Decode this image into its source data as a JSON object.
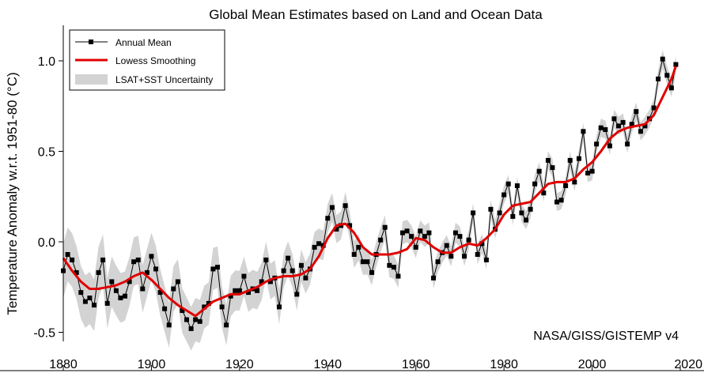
{
  "chart_data": {
    "type": "line",
    "title": "Global Mean Estimates based on Land and Ocean Data",
    "xlabel": "",
    "ylabel": "Temperature Anomaly w.r.t. 1951-80 (°C)",
    "xlim": [
      1880,
      2020
    ],
    "ylim": [
      -0.6,
      1.22
    ],
    "xticks": [
      1880,
      1900,
      1920,
      1940,
      1960,
      1980,
      2000,
      2020
    ],
    "yticks": [
      -0.5,
      0.0,
      0.5,
      1.0
    ],
    "ytick_labels": [
      "-0.5",
      "0.0",
      "0.5",
      "1.0"
    ],
    "grid": false,
    "legend_position": "top-left",
    "annotation": "NASA/GISS/GISTEMP v4",
    "colors": {
      "annual": "#000000",
      "smooth": "#e00000",
      "band": "#d3d3d3"
    },
    "series": [
      {
        "name": "Annual Mean",
        "style": "black line with square markers",
        "x": [
          1880,
          1881,
          1882,
          1883,
          1884,
          1885,
          1886,
          1887,
          1888,
          1889,
          1890,
          1891,
          1892,
          1893,
          1894,
          1895,
          1896,
          1897,
          1898,
          1899,
          1900,
          1901,
          1902,
          1903,
          1904,
          1905,
          1906,
          1907,
          1908,
          1909,
          1910,
          1911,
          1912,
          1913,
          1914,
          1915,
          1916,
          1917,
          1918,
          1919,
          1920,
          1921,
          1922,
          1923,
          1924,
          1925,
          1926,
          1927,
          1928,
          1929,
          1930,
          1931,
          1932,
          1933,
          1934,
          1935,
          1936,
          1937,
          1938,
          1939,
          1940,
          1941,
          1942,
          1943,
          1944,
          1945,
          1946,
          1947,
          1948,
          1949,
          1950,
          1951,
          1952,
          1953,
          1954,
          1955,
          1956,
          1957,
          1958,
          1959,
          1960,
          1961,
          1962,
          1963,
          1964,
          1965,
          1966,
          1967,
          1968,
          1969,
          1970,
          1971,
          1972,
          1973,
          1974,
          1975,
          1976,
          1977,
          1978,
          1979,
          1980,
          1981,
          1982,
          1983,
          1984,
          1985,
          1986,
          1987,
          1988,
          1989,
          1990,
          1991,
          1992,
          1993,
          1994,
          1995,
          1996,
          1997,
          1998,
          1999,
          2000,
          2001,
          2002,
          2003,
          2004,
          2005,
          2006,
          2007,
          2008,
          2009,
          2010,
          2011,
          2012,
          2013,
          2014,
          2015,
          2016,
          2017,
          2018,
          2019
        ],
        "y": [
          -0.16,
          -0.07,
          -0.1,
          -0.17,
          -0.28,
          -0.33,
          -0.31,
          -0.35,
          -0.17,
          -0.1,
          -0.34,
          -0.22,
          -0.27,
          -0.31,
          -0.3,
          -0.22,
          -0.11,
          -0.1,
          -0.26,
          -0.17,
          -0.08,
          -0.15,
          -0.28,
          -0.37,
          -0.46,
          -0.26,
          -0.22,
          -0.38,
          -0.43,
          -0.48,
          -0.43,
          -0.44,
          -0.36,
          -0.34,
          -0.15,
          -0.14,
          -0.36,
          -0.46,
          -0.3,
          -0.27,
          -0.27,
          -0.19,
          -0.28,
          -0.26,
          -0.27,
          -0.22,
          -0.1,
          -0.22,
          -0.2,
          -0.36,
          -0.16,
          -0.09,
          -0.16,
          -0.29,
          -0.13,
          -0.2,
          -0.15,
          -0.03,
          -0.01,
          -0.02,
          0.13,
          0.19,
          0.07,
          0.09,
          0.2,
          0.09,
          -0.07,
          -0.03,
          -0.11,
          -0.11,
          -0.17,
          -0.07,
          0.01,
          0.08,
          -0.13,
          -0.14,
          -0.19,
          0.05,
          0.06,
          0.03,
          -0.03,
          0.06,
          0.03,
          0.05,
          -0.2,
          -0.11,
          -0.06,
          -0.02,
          -0.08,
          0.05,
          0.03,
          -0.08,
          0.01,
          0.16,
          -0.07,
          -0.01,
          -0.1,
          0.18,
          0.07,
          0.16,
          0.26,
          0.32,
          0.14,
          0.31,
          0.16,
          0.12,
          0.18,
          0.32,
          0.39,
          0.27,
          0.45,
          0.41,
          0.22,
          0.23,
          0.31,
          0.45,
          0.33,
          0.46,
          0.61,
          0.38,
          0.39,
          0.54,
          0.63,
          0.62,
          0.53,
          0.68,
          0.64,
          0.66,
          0.54,
          0.65,
          0.72,
          0.61,
          0.64,
          0.68,
          0.74,
          0.9,
          1.01,
          0.92,
          0.85,
          0.98
        ]
      },
      {
        "name": "Lowess Smoothing",
        "style": "thick red line",
        "x": [
          1880,
          1882,
          1884,
          1886,
          1888,
          1890,
          1892,
          1894,
          1896,
          1898,
          1900,
          1902,
          1904,
          1906,
          1908,
          1910,
          1912,
          1914,
          1916,
          1918,
          1920,
          1922,
          1924,
          1926,
          1928,
          1930,
          1932,
          1934,
          1936,
          1938,
          1940,
          1942,
          1944,
          1946,
          1948,
          1950,
          1952,
          1954,
          1956,
          1958,
          1960,
          1962,
          1964,
          1966,
          1968,
          1970,
          1972,
          1974,
          1976,
          1978,
          1980,
          1982,
          1984,
          1986,
          1988,
          1990,
          1992,
          1994,
          1996,
          1998,
          2000,
          2002,
          2004,
          2006,
          2008,
          2010,
          2012,
          2014,
          2016,
          2018,
          2019
        ],
        "y": [
          -0.09,
          -0.16,
          -0.22,
          -0.26,
          -0.26,
          -0.25,
          -0.24,
          -0.22,
          -0.19,
          -0.17,
          -0.21,
          -0.26,
          -0.31,
          -0.35,
          -0.38,
          -0.41,
          -0.37,
          -0.33,
          -0.31,
          -0.29,
          -0.29,
          -0.27,
          -0.25,
          -0.22,
          -0.2,
          -0.19,
          -0.19,
          -0.18,
          -0.15,
          -0.08,
          0.02,
          0.09,
          0.1,
          0.05,
          -0.03,
          -0.07,
          -0.07,
          -0.07,
          -0.06,
          -0.04,
          0.02,
          0.01,
          -0.03,
          -0.06,
          -0.06,
          -0.03,
          -0.01,
          -0.02,
          0.02,
          0.07,
          0.15,
          0.2,
          0.21,
          0.22,
          0.27,
          0.32,
          0.33,
          0.33,
          0.35,
          0.4,
          0.44,
          0.5,
          0.57,
          0.61,
          0.63,
          0.64,
          0.65,
          0.7,
          0.8,
          0.9,
          0.97
        ]
      },
      {
        "name": "LSAT+SST Uncertainty",
        "style": "light gray band, approx ±0.15 (1880) narrowing to ±0.05 (2019) around annual mean",
        "x": [
          1880,
          1900,
          1920,
          1940,
          1960,
          1980,
          2000,
          2019
        ],
        "half_width": [
          0.15,
          0.13,
          0.11,
          0.08,
          0.06,
          0.05,
          0.05,
          0.05
        ]
      }
    ]
  }
}
